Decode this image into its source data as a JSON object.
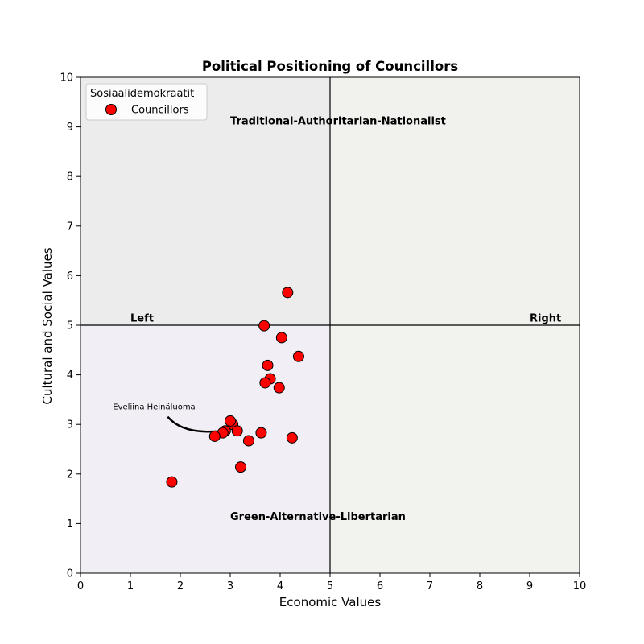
{
  "chart_data": {
    "type": "scatter",
    "title": "Political Positioning of Councillors",
    "xlabel": "Economic Values",
    "ylabel": "Cultural and Social Values",
    "xlim": [
      0,
      10
    ],
    "ylim": [
      0,
      10
    ],
    "xticks": [
      "0",
      "1",
      "2",
      "3",
      "4",
      "5",
      "6",
      "7",
      "8",
      "9",
      "10"
    ],
    "yticks": [
      "0",
      "1",
      "2",
      "3",
      "4",
      "5",
      "6",
      "7",
      "8",
      "9",
      "10"
    ],
    "grid": false,
    "legend_position": "top-left",
    "legend_title": "Sosiaalidemokraatit",
    "quadrant_colors": {
      "top_left": "#ececec",
      "top_right": "#f1f2ee",
      "bottom_left": "#f1eff5",
      "bottom_right": "#f2f2ee"
    },
    "divider_x": 5,
    "divider_y": 5,
    "quadrant_labels": [
      {
        "text": "Traditional-Authoritarian-Nationalist",
        "x": 3.0,
        "y": 9.05
      },
      {
        "text": "Green-Alternative-Libertarian",
        "x": 3.0,
        "y": 1.07
      },
      {
        "text": "Left",
        "x": 1.0,
        "y": 5.07
      },
      {
        "text": "Right",
        "x": 9.0,
        "y": 5.07
      }
    ],
    "series": [
      {
        "name": "Councillors",
        "color": "#ff0000",
        "edgecolor": "#000000",
        "points": [
          [
            4.15,
            5.66
          ],
          [
            3.68,
            4.99
          ],
          [
            4.03,
            4.75
          ],
          [
            4.37,
            4.37
          ],
          [
            3.75,
            4.19
          ],
          [
            3.8,
            3.92
          ],
          [
            3.7,
            3.84
          ],
          [
            3.98,
            3.74
          ],
          [
            3.05,
            3.0
          ],
          [
            3.0,
            3.07
          ],
          [
            3.14,
            2.87
          ],
          [
            2.9,
            2.87
          ],
          [
            2.85,
            2.83
          ],
          [
            3.62,
            2.83
          ],
          [
            2.69,
            2.76
          ],
          [
            3.37,
            2.67
          ],
          [
            4.24,
            2.73
          ],
          [
            3.21,
            2.14
          ],
          [
            1.83,
            1.84
          ]
        ]
      }
    ],
    "annotations": [
      {
        "text": "Eveliina Heinäluoma",
        "x": 0.65,
        "y": 3.3,
        "target": [
          2.85,
          2.86
        ]
      }
    ]
  }
}
